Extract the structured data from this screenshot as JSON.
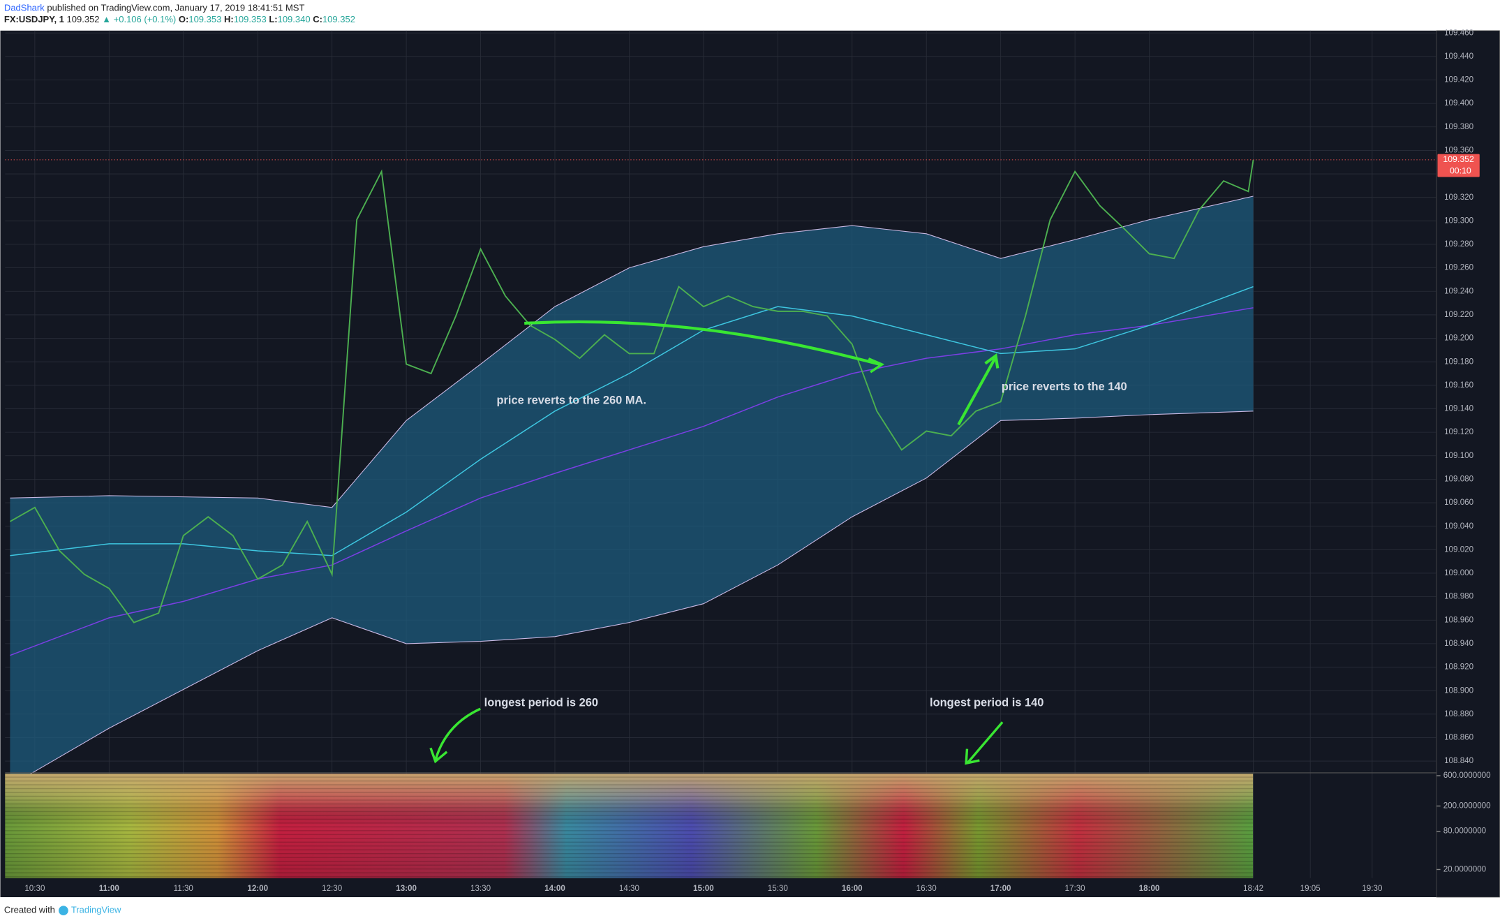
{
  "header": {
    "author": "DadShark",
    "published": "published on TradingView.com, January 17, 2019 18:41:51 MST",
    "symbol": "FX:USDJPY, 1",
    "last": "109.352",
    "change": "▲ +0.106 (+0.1%)",
    "open_label": "O:",
    "open": "109.353",
    "high_label": "H:",
    "high": "109.353",
    "low_label": "L:",
    "low": "109.340",
    "close_label": "C:",
    "close": "109.352"
  },
  "chart_data": {
    "type": "line",
    "xlim": [
      "10:18",
      "19:56"
    ],
    "xticks": [
      "10:30",
      "11:00",
      "11:30",
      "12:00",
      "12:30",
      "13:00",
      "13:30",
      "14:00",
      "14:30",
      "15:00",
      "15:30",
      "16:00",
      "16:30",
      "17:00",
      "17:30",
      "18:00",
      "18:42",
      "19:05",
      "19:30"
    ],
    "ylim": [
      108.83,
      109.462
    ],
    "yticks": [
      {
        "value": 109.46,
        "label": "109.460"
      },
      {
        "value": 109.44,
        "label": "109.440"
      },
      {
        "value": 109.42,
        "label": "109.420"
      },
      {
        "value": 109.4,
        "label": "109.400"
      },
      {
        "value": 109.38,
        "label": "109.380"
      },
      {
        "value": 109.36,
        "label": "109.360"
      },
      {
        "value": 109.34,
        "label": "109.340"
      },
      {
        "value": 109.32,
        "label": "109.320"
      },
      {
        "value": 109.3,
        "label": "109.300"
      },
      {
        "value": 109.28,
        "label": "109.280"
      },
      {
        "value": 109.26,
        "label": "109.260"
      },
      {
        "value": 109.24,
        "label": "109.240"
      },
      {
        "value": 109.22,
        "label": "109.220"
      },
      {
        "value": 109.2,
        "label": "109.200"
      },
      {
        "value": 109.18,
        "label": "109.180"
      },
      {
        "value": 109.16,
        "label": "109.160"
      },
      {
        "value": 109.14,
        "label": "109.140"
      },
      {
        "value": 109.12,
        "label": "109.120"
      },
      {
        "value": 109.1,
        "label": "109.100"
      },
      {
        "value": 109.08,
        "label": "109.080"
      },
      {
        "value": 109.06,
        "label": "109.060"
      },
      {
        "value": 109.04,
        "label": "109.040"
      },
      {
        "value": 109.02,
        "label": "109.020"
      },
      {
        "value": 109.0,
        "label": "109.000"
      },
      {
        "value": 108.98,
        "label": "108.980"
      },
      {
        "value": 108.96,
        "label": "108.960"
      },
      {
        "value": 108.94,
        "label": "108.940"
      },
      {
        "value": 108.92,
        "label": "108.920"
      },
      {
        "value": 108.9,
        "label": "108.900"
      },
      {
        "value": 108.88,
        "label": "108.880"
      },
      {
        "value": 108.86,
        "label": "108.860"
      },
      {
        "value": 108.84,
        "label": "108.840"
      }
    ],
    "grid": true,
    "band": {
      "color": "#1d5b7c",
      "line_color": "#c9b9e3",
      "x": [
        "10:20",
        "11:00",
        "11:30",
        "12:00",
        "12:30",
        "13:00",
        "13:30",
        "14:00",
        "14:30",
        "15:00",
        "15:30",
        "16:00",
        "16:30",
        "17:00",
        "17:30",
        "18:00",
        "18:42"
      ],
      "upper": [
        109.064,
        109.066,
        109.065,
        109.064,
        109.056,
        109.13,
        109.178,
        109.227,
        109.26,
        109.278,
        109.289,
        109.296,
        109.289,
        109.268,
        109.284,
        109.301,
        109.321
      ],
      "lower": [
        108.819,
        108.868,
        108.901,
        108.934,
        108.962,
        108.94,
        108.942,
        108.946,
        108.958,
        108.974,
        109.007,
        109.048,
        109.081,
        109.13,
        109.132,
        109.135,
        109.138
      ]
    },
    "series": [
      {
        "color": "#7b3fe4",
        "x": [
          "10:20",
          "11:00",
          "11:30",
          "12:00",
          "12:30",
          "13:00",
          "13:30",
          "14:00",
          "14:30",
          "15:00",
          "15:30",
          "16:00",
          "16:30",
          "17:00",
          "17:30",
          "18:00",
          "18:42"
        ],
        "values": [
          108.93,
          108.962,
          108.976,
          108.995,
          109.007,
          109.036,
          109.064,
          109.085,
          109.105,
          109.125,
          109.15,
          109.17,
          109.183,
          109.191,
          109.203,
          109.211,
          109.226
        ]
      },
      {
        "color": "#3ec6e0",
        "x": [
          "10:20",
          "11:00",
          "11:30",
          "12:00",
          "12:30",
          "13:00",
          "13:30",
          "14:00",
          "14:30",
          "15:00",
          "15:30",
          "16:00",
          "16:30",
          "17:00",
          "17:30",
          "18:00",
          "18:42"
        ],
        "values": [
          109.015,
          109.025,
          109.025,
          109.019,
          109.015,
          109.052,
          109.097,
          109.138,
          109.17,
          109.207,
          109.227,
          109.219,
          109.203,
          109.187,
          109.191,
          109.211,
          109.244
        ]
      },
      {
        "color": "#4caf50",
        "x": [
          "10:20",
          "10:30",
          "10:40",
          "10:50",
          "11:00",
          "11:10",
          "11:20",
          "11:30",
          "11:40",
          "11:50",
          "12:00",
          "12:10",
          "12:20",
          "12:30",
          "12:40",
          "12:50",
          "13:00",
          "13:10",
          "13:20",
          "13:30",
          "13:40",
          "13:50",
          "14:00",
          "14:10",
          "14:20",
          "14:30",
          "14:40",
          "14:50",
          "15:00",
          "15:10",
          "15:20",
          "15:30",
          "15:40",
          "15:50",
          "16:00",
          "16:10",
          "16:20",
          "16:30",
          "16:40",
          "16:50",
          "17:00",
          "17:10",
          "17:20",
          "17:30",
          "17:40",
          "17:50",
          "18:00",
          "18:10",
          "18:20",
          "18:30",
          "18:40",
          "18:42"
        ],
        "values": [
          109.044,
          109.056,
          109.019,
          108.999,
          108.987,
          108.958,
          108.966,
          109.032,
          109.048,
          109.032,
          108.995,
          109.007,
          109.044,
          108.999,
          109.301,
          109.342,
          109.178,
          109.17,
          109.219,
          109.276,
          109.236,
          109.211,
          109.199,
          109.183,
          109.203,
          109.187,
          109.187,
          109.244,
          109.227,
          109.236,
          109.227,
          109.223,
          109.223,
          109.219,
          109.195,
          109.138,
          109.105,
          109.121,
          109.117,
          109.138,
          109.146,
          109.219,
          109.301,
          109.342,
          109.313,
          109.293,
          109.272,
          109.268,
          109.309,
          109.334,
          109.325,
          109.352
        ]
      }
    ],
    "price_tag": "109.352",
    "countdown": "00:10",
    "annotations": [
      "price reverts to the 260 MA.",
      "price reverts to the 140",
      "longest period is 260",
      "longest period is 140"
    ],
    "heatmap": {
      "log": true,
      "ylim": [
        14.7,
        643
      ],
      "yticks": [
        {
          "value": 600,
          "label": "600.0000000"
        },
        {
          "value": 200,
          "label": "200.0000000"
        },
        {
          "value": 80,
          "label": "80.0000000"
        },
        {
          "value": 20,
          "label": "20.0000000"
        }
      ]
    }
  },
  "footer": {
    "created": "Created with",
    "brand": "TradingView"
  }
}
